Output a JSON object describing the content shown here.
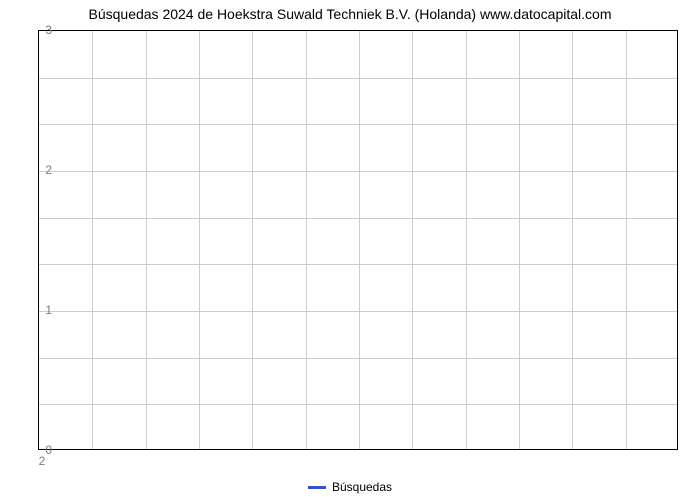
{
  "chart": {
    "type": "line",
    "title": "Búsquedas 2024 de Hoekstra Suwald Techniek B.V. (Holanda) www.datocapital.com",
    "title_fontsize": 14,
    "title_color": "#000000",
    "background_color": "#ffffff",
    "plot_border_color": "#000000",
    "grid_color": "#cccccc",
    "grid_on": true,
    "y": {
      "ylim": [
        0,
        3
      ],
      "label_values": [
        0,
        1,
        2,
        3
      ],
      "label_texts": [
        "0",
        "1",
        "2",
        "3"
      ],
      "minor_grid_count_between": 2,
      "tick_label_color": "#7a7a7a",
      "tick_label_fontsize": 12
    },
    "x": {
      "label_values": [
        2
      ],
      "label_texts": [
        "2"
      ],
      "vertical_grid_count": 12,
      "tick_label_color": "#7a7a7a",
      "tick_label_fontsize": 12
    },
    "series": [
      {
        "name": "Búsquedas",
        "color": "#2f54d0",
        "line_width": 3,
        "values": []
      }
    ],
    "legend": {
      "position": "bottom-center",
      "label": "Búsquedas",
      "swatch_color": "#2f54d0",
      "fontsize": 12,
      "text_color": "#000000"
    }
  }
}
